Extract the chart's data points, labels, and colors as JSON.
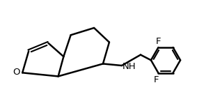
{
  "bg_color": "#ffffff",
  "line_color": "#000000",
  "line_width": 1.8,
  "font_size": 9.5,
  "figsize": [
    2.83,
    1.52
  ],
  "dpi": 100,
  "xlim": [
    0,
    10.5
  ],
  "ylim": [
    0,
    5.8
  ]
}
